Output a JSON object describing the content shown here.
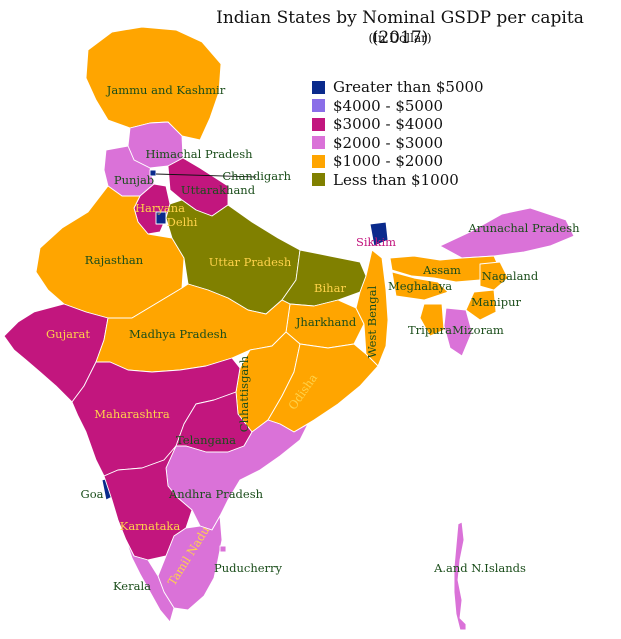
{
  "title": "Indian States by Nominal GSDP per capita (2017)",
  "subtitle": "(In Dollar)",
  "legend": [
    {
      "label": "Greater than $5000",
      "color": "#0a2a8c"
    },
    {
      "label": "$4000 - $5000",
      "color": "#8a6ee8"
    },
    {
      "label": "$3000 - $4000",
      "color": "#c2167e"
    },
    {
      "label": "$2000 - $3000",
      "color": "#da72d8"
    },
    {
      "label": "$1000 - $2000",
      "color": "#ffa500"
    },
    {
      "label": "Less than $1000",
      "color": "#808000"
    }
  ],
  "regions": [
    {
      "name": "Jammu and Kashmir",
      "category": "$1000 - $2000"
    },
    {
      "name": "Himachal Pradesh",
      "category": "$2000 - $3000"
    },
    {
      "name": "Punjab",
      "category": "$2000 - $3000"
    },
    {
      "name": "Chandigarh",
      "category": "Greater than $5000"
    },
    {
      "name": "Uttarakhand",
      "category": "$3000 - $4000"
    },
    {
      "name": "Haryana",
      "category": "$3000 - $4000"
    },
    {
      "name": "Delhi",
      "category": "Greater than $5000"
    },
    {
      "name": "Rajasthan",
      "category": "$1000 - $2000"
    },
    {
      "name": "Uttar Pradesh",
      "category": "Less than $1000"
    },
    {
      "name": "Bihar",
      "category": "Less than $1000"
    },
    {
      "name": "Sikkim",
      "category": "Greater than $5000"
    },
    {
      "name": "Arunachal Pradesh",
      "category": "$2000 - $3000"
    },
    {
      "name": "Assam",
      "category": "$1000 - $2000"
    },
    {
      "name": "Nagaland",
      "category": "$1000 - $2000"
    },
    {
      "name": "Meghalaya",
      "category": "$1000 - $2000"
    },
    {
      "name": "Manipur",
      "category": "$1000 - $2000"
    },
    {
      "name": "Tripura",
      "category": "$1000 - $2000"
    },
    {
      "name": "Mizoram",
      "category": "$2000 - $3000"
    },
    {
      "name": "Jharkhand",
      "category": "$1000 - $2000"
    },
    {
      "name": "West Bengal",
      "category": "$1000 - $2000"
    },
    {
      "name": "Gujarat",
      "category": "$3000 - $4000"
    },
    {
      "name": "Madhya Pradesh",
      "category": "$1000 - $2000"
    },
    {
      "name": "Chhattisgarh",
      "category": "$1000 - $2000"
    },
    {
      "name": "Odisha",
      "category": "$1000 - $2000"
    },
    {
      "name": "Maharashtra",
      "category": "$3000 - $4000"
    },
    {
      "name": "Telangana",
      "category": "$3000 - $4000"
    },
    {
      "name": "Goa",
      "category": "Greater than $5000"
    },
    {
      "name": "Andhra Pradesh",
      "category": "$2000 - $3000"
    },
    {
      "name": "Karnataka",
      "category": "$3000 - $4000"
    },
    {
      "name": "Tamil Nadu",
      "category": "$2000 - $3000"
    },
    {
      "name": "Puducherry",
      "category": "$2000 - $3000"
    },
    {
      "name": "Kerala",
      "category": "$2000 - $3000"
    },
    {
      "name": "A.and N.Islands",
      "category": "$2000 - $3000"
    }
  ]
}
